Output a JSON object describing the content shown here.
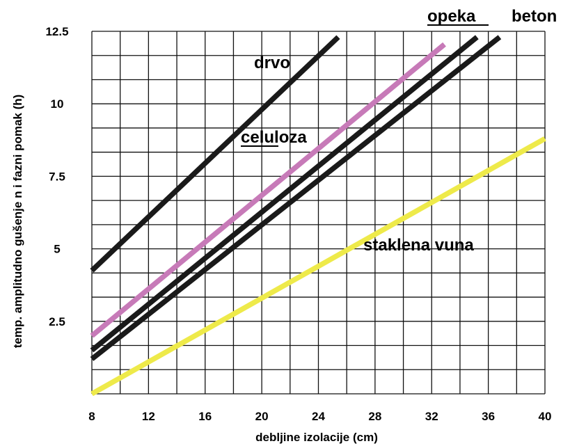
{
  "chart_data": {
    "type": "line",
    "xlabel": "debljine izolacije (cm)",
    "ylabel": "temp. amplitudno gušenje n i fazni pomak (h)",
    "xlim": [
      8,
      40
    ],
    "ylim": [
      0,
      12.5
    ],
    "x_ticks": [
      "8",
      "12",
      "16",
      "20",
      "24",
      "28",
      "32",
      "36",
      "40"
    ],
    "y_ticks": [
      "2.5",
      "5",
      "7.5",
      "10",
      "12.5"
    ],
    "grid": true,
    "series": [
      {
        "name": "drvo",
        "color": "#1a1a1a",
        "x": [
          8,
          25.4
        ],
        "y": [
          4.25,
          12.3
        ]
      },
      {
        "name": "celuloza",
        "color": "#c77ab8",
        "x": [
          8,
          32.9
        ],
        "y": [
          2.0,
          12.05
        ]
      },
      {
        "name": "opeka",
        "color": "#1a1a1a",
        "x": [
          8,
          35.2
        ],
        "y": [
          1.5,
          12.3
        ]
      },
      {
        "name": "beton",
        "color": "#1a1a1a",
        "x": [
          8,
          36.8
        ],
        "y": [
          1.2,
          12.3
        ]
      },
      {
        "name": "staklena vuna",
        "color": "#eeea4a",
        "x": [
          8,
          40
        ],
        "y": [
          0.0,
          8.8
        ]
      }
    ]
  }
}
